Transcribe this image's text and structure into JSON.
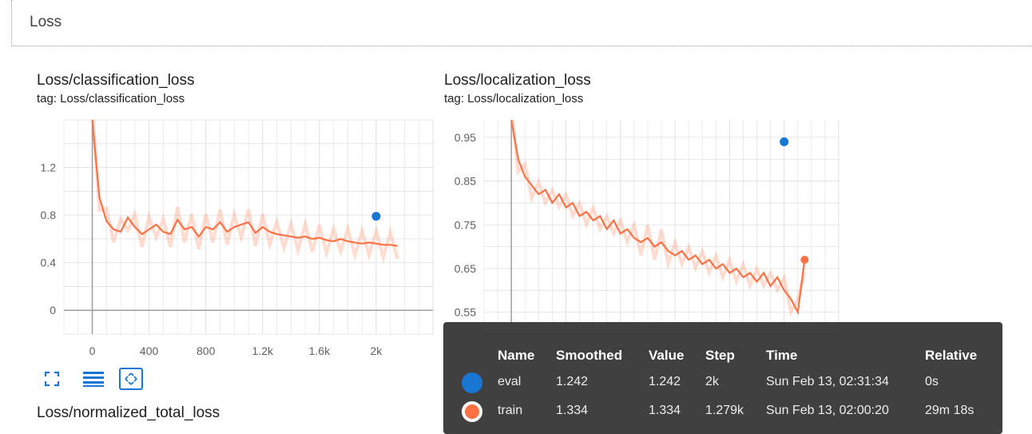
{
  "section": {
    "title": "Loss"
  },
  "cards": [
    {
      "title": "Loss/classification_loss",
      "tag": "tag: Loss/classification_loss"
    },
    {
      "title": "Loss/localization_loss",
      "tag": "tag: Loss/localization_loss"
    }
  ],
  "next_card": {
    "title": "Loss/normalized_total_loss"
  },
  "toolbar": {
    "icons": [
      "fullscreen-icon",
      "list-icon",
      "fit-domain-icon"
    ]
  },
  "colors": {
    "train": "#ff7043",
    "eval": "#1976d2",
    "grid": "#e0e0e0",
    "axis": "#9e9e9e",
    "tooltip_bg": "#383838"
  },
  "tooltip": {
    "headers": {
      "name": "Name",
      "smoothed": "Smoothed",
      "value": "Value",
      "step": "Step",
      "time": "Time",
      "relative": "Relative"
    },
    "rows": [
      {
        "name": "eval",
        "smoothed": "1.242",
        "value": "1.242",
        "step": "2k",
        "time": "Sun Feb 13, 02:31:34",
        "relative": "0s",
        "color": "#1976d2"
      },
      {
        "name": "train",
        "smoothed": "1.334",
        "value": "1.334",
        "step": "1.279k",
        "time": "Sun Feb 13, 02:00:20",
        "relative": "29m 18s",
        "color": "#ff7043"
      }
    ]
  },
  "chart_data": [
    {
      "type": "line",
      "title": "Loss/classification_loss",
      "xlim": [
        -200,
        2400
      ],
      "ylim": [
        -0.2,
        1.6
      ],
      "xticks": [
        0,
        400,
        800,
        1200,
        1600,
        2000
      ],
      "xtick_labels": [
        "0",
        "400",
        "800",
        "1.2k",
        "1.6k",
        "2k"
      ],
      "yticks": [
        0,
        0.4,
        0.8,
        1.2
      ],
      "ytick_labels": [
        "0",
        "0.4",
        "0.8",
        "1.2"
      ],
      "grid": true,
      "series": [
        {
          "name": "train",
          "x": [
            0,
            50,
            100,
            150,
            200,
            250,
            300,
            350,
            400,
            450,
            500,
            550,
            600,
            650,
            700,
            750,
            800,
            850,
            900,
            950,
            1000,
            1050,
            1100,
            1150,
            1200,
            1250,
            1300,
            1350,
            1400,
            1450,
            1500,
            1550,
            1600,
            1650,
            1700,
            1750,
            1800,
            1850,
            1900,
            1950,
            2000,
            2050,
            2100,
            2150
          ],
          "y": [
            1.6,
            0.95,
            0.75,
            0.68,
            0.66,
            0.78,
            0.7,
            0.64,
            0.68,
            0.72,
            0.66,
            0.64,
            0.76,
            0.68,
            0.7,
            0.62,
            0.7,
            0.68,
            0.74,
            0.66,
            0.7,
            0.72,
            0.74,
            0.65,
            0.7,
            0.66,
            0.64,
            0.63,
            0.62,
            0.61,
            0.62,
            0.6,
            0.61,
            0.59,
            0.58,
            0.6,
            0.58,
            0.57,
            0.56,
            0.57,
            0.56,
            0.55,
            0.55,
            0.54
          ]
        },
        {
          "name": "eval",
          "x": [
            2000
          ],
          "y": [
            0.79
          ]
        }
      ]
    },
    {
      "type": "line",
      "title": "Loss/localization_loss",
      "xlim": [
        -200,
        2400
      ],
      "ylim": [
        0.5,
        0.99
      ],
      "xticks": [
        0,
        400,
        800,
        1200,
        1600,
        2000
      ],
      "xtick_labels": [
        "0",
        "400",
        "800",
        "1.2k",
        "1.6k",
        "2k"
      ],
      "yticks": [
        0.55,
        0.65,
        0.75,
        0.85,
        0.95
      ],
      "ytick_labels": [
        "0.55",
        "0.65",
        "0.75",
        "0.85",
        "0.95"
      ],
      "grid": true,
      "series": [
        {
          "name": "train",
          "x": [
            0,
            50,
            100,
            150,
            200,
            250,
            300,
            350,
            400,
            450,
            500,
            550,
            600,
            650,
            700,
            750,
            800,
            850,
            900,
            950,
            1000,
            1050,
            1100,
            1150,
            1200,
            1250,
            1300,
            1350,
            1400,
            1450,
            1500,
            1550,
            1600,
            1650,
            1700,
            1750,
            1800,
            1850,
            1900,
            1950,
            2000,
            2050,
            2100,
            2150
          ],
          "y": [
            0.99,
            0.9,
            0.86,
            0.84,
            0.82,
            0.83,
            0.8,
            0.82,
            0.79,
            0.8,
            0.77,
            0.78,
            0.76,
            0.77,
            0.74,
            0.76,
            0.73,
            0.74,
            0.72,
            0.71,
            0.72,
            0.7,
            0.71,
            0.69,
            0.68,
            0.69,
            0.67,
            0.68,
            0.66,
            0.67,
            0.65,
            0.66,
            0.64,
            0.65,
            0.63,
            0.64,
            0.62,
            0.64,
            0.61,
            0.63,
            0.6,
            0.58,
            0.55,
            0.67
          ]
        },
        {
          "name": "eval",
          "x": [
            2000
          ],
          "y": [
            0.94
          ]
        }
      ]
    }
  ]
}
